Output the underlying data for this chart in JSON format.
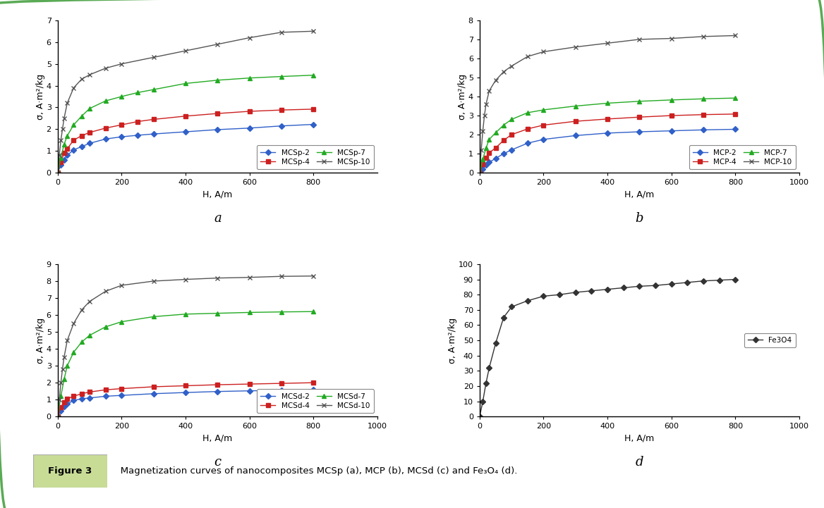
{
  "panel_a": {
    "title_label": "a",
    "xlabel": "H, A/m",
    "ylabel": "σ, A·m²/kg",
    "xlim": [
      0,
      1000
    ],
    "ylim": [
      0,
      7
    ],
    "yticks": [
      0,
      1,
      2,
      3,
      4,
      5,
      6,
      7
    ],
    "xticks": [
      0,
      200,
      400,
      600,
      800
    ],
    "series": [
      {
        "label": "MCSp-2",
        "color": "#3060c8",
        "marker": "D",
        "x": [
          0,
          10,
          20,
          30,
          50,
          75,
          100,
          150,
          200,
          250,
          300,
          400,
          500,
          600,
          700,
          800
        ],
        "y": [
          0,
          0.35,
          0.6,
          0.8,
          1.05,
          1.2,
          1.35,
          1.55,
          1.65,
          1.72,
          1.78,
          1.88,
          1.98,
          2.05,
          2.15,
          2.22
        ]
      },
      {
        "label": "MCSp-4",
        "color": "#cc2020",
        "marker": "s",
        "x": [
          0,
          10,
          20,
          30,
          50,
          75,
          100,
          150,
          200,
          250,
          300,
          400,
          500,
          600,
          700,
          800
        ],
        "y": [
          0,
          0.5,
          0.9,
          1.1,
          1.5,
          1.7,
          1.85,
          2.05,
          2.2,
          2.35,
          2.45,
          2.6,
          2.72,
          2.82,
          2.88,
          2.92
        ]
      },
      {
        "label": "MCSp-7",
        "color": "#22aa22",
        "marker": "^",
        "x": [
          0,
          10,
          20,
          30,
          50,
          75,
          100,
          150,
          200,
          250,
          300,
          400,
          500,
          600,
          700,
          800
        ],
        "y": [
          0,
          0.7,
          1.3,
          1.7,
          2.2,
          2.6,
          2.95,
          3.3,
          3.5,
          3.68,
          3.82,
          4.1,
          4.25,
          4.35,
          4.42,
          4.48
        ]
      },
      {
        "label": "MCSp-10",
        "color": "#555555",
        "marker": "x",
        "x": [
          0,
          5,
          10,
          15,
          20,
          30,
          50,
          75,
          100,
          150,
          200,
          300,
          400,
          500,
          600,
          700,
          800
        ],
        "y": [
          0,
          0.8,
          1.5,
          2.0,
          2.5,
          3.2,
          3.9,
          4.3,
          4.5,
          4.8,
          5.0,
          5.3,
          5.6,
          5.9,
          6.2,
          6.45,
          6.5
        ]
      }
    ]
  },
  "panel_b": {
    "title_label": "b",
    "xlabel": "H, A/m",
    "ylabel": "σ, A·m²/kg",
    "xlim": [
      0,
      1000
    ],
    "ylim": [
      0,
      8
    ],
    "yticks": [
      0,
      1,
      2,
      3,
      4,
      5,
      6,
      7,
      8
    ],
    "xticks": [
      0,
      200,
      400,
      600,
      800,
      1000
    ],
    "series": [
      {
        "label": "MCP-2",
        "color": "#3060c8",
        "marker": "D",
        "x": [
          0,
          10,
          20,
          30,
          50,
          75,
          100,
          150,
          200,
          300,
          400,
          500,
          600,
          700,
          800
        ],
        "y": [
          0,
          0.2,
          0.4,
          0.55,
          0.75,
          1.0,
          1.2,
          1.55,
          1.75,
          1.95,
          2.08,
          2.15,
          2.2,
          2.25,
          2.28
        ]
      },
      {
        "label": "MCP-4",
        "color": "#cc2020",
        "marker": "s",
        "x": [
          0,
          10,
          20,
          30,
          50,
          75,
          100,
          150,
          200,
          300,
          400,
          500,
          600,
          700,
          800
        ],
        "y": [
          0,
          0.45,
          0.8,
          1.05,
          1.3,
          1.7,
          2.0,
          2.3,
          2.5,
          2.7,
          2.82,
          2.92,
          3.0,
          3.05,
          3.08
        ]
      },
      {
        "label": "MCP-7",
        "color": "#22aa22",
        "marker": "^",
        "x": [
          0,
          10,
          20,
          30,
          50,
          75,
          100,
          150,
          200,
          300,
          400,
          500,
          600,
          700,
          800
        ],
        "y": [
          0,
          0.7,
          1.3,
          1.75,
          2.1,
          2.5,
          2.8,
          3.15,
          3.3,
          3.5,
          3.65,
          3.75,
          3.82,
          3.88,
          3.92
        ]
      },
      {
        "label": "MCP-10",
        "color": "#555555",
        "marker": "x",
        "x": [
          0,
          5,
          10,
          15,
          20,
          30,
          50,
          75,
          100,
          150,
          200,
          300,
          400,
          500,
          600,
          700,
          800
        ],
        "y": [
          0,
          1.2,
          2.2,
          3.0,
          3.6,
          4.3,
          4.85,
          5.3,
          5.6,
          6.1,
          6.35,
          6.6,
          6.8,
          7.0,
          7.05,
          7.15,
          7.2
        ]
      }
    ]
  },
  "panel_c": {
    "title_label": "c",
    "xlabel": "H, A/m",
    "ylabel": "σ, A·m²/kg",
    "xlim": [
      0,
      1000
    ],
    "ylim": [
      0,
      9
    ],
    "yticks": [
      0,
      1,
      2,
      3,
      4,
      5,
      6,
      7,
      8,
      9
    ],
    "xticks": [
      0,
      200,
      400,
      600,
      800,
      1000
    ],
    "series": [
      {
        "label": "MCSd-2",
        "color": "#3060c8",
        "marker": "D",
        "x": [
          0,
          10,
          20,
          30,
          50,
          75,
          100,
          150,
          200,
          300,
          400,
          500,
          600,
          700,
          800
        ],
        "y": [
          0,
          0.35,
          0.6,
          0.75,
          0.95,
          1.05,
          1.1,
          1.2,
          1.25,
          1.35,
          1.42,
          1.48,
          1.52,
          1.55,
          1.58
        ]
      },
      {
        "label": "MCSd-4",
        "color": "#cc2020",
        "marker": "s",
        "x": [
          0,
          10,
          20,
          30,
          50,
          75,
          100,
          150,
          200,
          300,
          400,
          500,
          600,
          700,
          800
        ],
        "y": [
          0,
          0.55,
          0.85,
          1.05,
          1.2,
          1.35,
          1.45,
          1.58,
          1.65,
          1.76,
          1.82,
          1.88,
          1.92,
          1.96,
          2.0
        ]
      },
      {
        "label": "MCSd-7",
        "color": "#22aa22",
        "marker": "^",
        "x": [
          0,
          10,
          20,
          30,
          50,
          75,
          100,
          150,
          200,
          300,
          400,
          500,
          600,
          700,
          800
        ],
        "y": [
          0,
          1.2,
          2.2,
          3.0,
          3.8,
          4.4,
          4.8,
          5.3,
          5.6,
          5.9,
          6.05,
          6.1,
          6.15,
          6.18,
          6.2
        ]
      },
      {
        "label": "MCSd-10",
        "color": "#555555",
        "marker": "x",
        "x": [
          0,
          5,
          10,
          15,
          20,
          30,
          50,
          75,
          100,
          150,
          200,
          300,
          400,
          500,
          600,
          700,
          800
        ],
        "y": [
          0,
          1.0,
          2.0,
          2.8,
          3.5,
          4.5,
          5.5,
          6.3,
          6.8,
          7.4,
          7.75,
          8.0,
          8.1,
          8.18,
          8.22,
          8.28,
          8.3
        ]
      }
    ]
  },
  "panel_d": {
    "title_label": "d",
    "xlabel": "H, A/m",
    "ylabel": "σ, A·m²/kg",
    "xlim": [
      0,
      1000
    ],
    "ylim": [
      0,
      100
    ],
    "yticks": [
      0,
      10,
      20,
      30,
      40,
      50,
      60,
      70,
      80,
      90,
      100
    ],
    "xticks": [
      0,
      200,
      400,
      600,
      800,
      1000
    ],
    "series": [
      {
        "label": "Fe3O4",
        "color": "#333333",
        "marker": "D",
        "x": [
          0,
          10,
          20,
          30,
          50,
          75,
          100,
          150,
          200,
          250,
          300,
          350,
          400,
          450,
          500,
          550,
          600,
          650,
          700,
          750,
          800
        ],
        "y": [
          0,
          10,
          22,
          32,
          48,
          65,
          72,
          76,
          79,
          80,
          81.5,
          82.5,
          83.5,
          84.5,
          85.5,
          86,
          87,
          88,
          89,
          89.5,
          90
        ]
      }
    ]
  },
  "background_color": "#ffffff",
  "border_color": "#5aaa55",
  "caption_label": "Figure 3",
  "caption_text": "   Magnetization curves of nanocomposites MCSp (a), MCP (b), MCSd (c) and Fe₃O₄ (d).",
  "caption_box_color": "#c8dc96",
  "caption_fontsize": 9.5
}
